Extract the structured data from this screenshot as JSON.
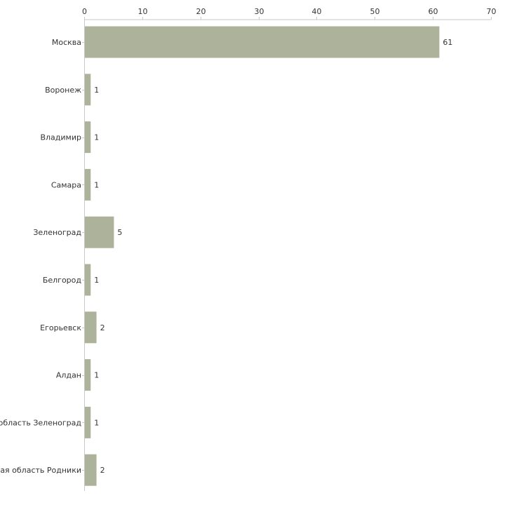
{
  "colors": {
    "bar": "#adb39a",
    "axis": "#c8c8c8",
    "text": "#333333"
  },
  "chart_data": {
    "type": "bar",
    "orientation": "horizontal",
    "title": "",
    "xlabel": "",
    "ylabel": "",
    "xlim": [
      0,
      70
    ],
    "x_ticks": [
      0,
      10,
      20,
      30,
      40,
      50,
      60,
      70
    ],
    "x_axis_position": "top",
    "grid": false,
    "categories": [
      "Москва",
      "Воронеж",
      "Владимир",
      "Самара",
      "Зеленоград",
      "Белгород",
      "Егорьевск",
      "Алдан",
      "Московская область Зеленоград",
      "Ивановская область Родники"
    ],
    "values": [
      61,
      1,
      1,
      1,
      5,
      1,
      2,
      1,
      1,
      2
    ],
    "data_labels": [
      "61",
      "1",
      "1",
      "1",
      "5",
      "1",
      "2",
      "1",
      "1",
      "2"
    ]
  }
}
